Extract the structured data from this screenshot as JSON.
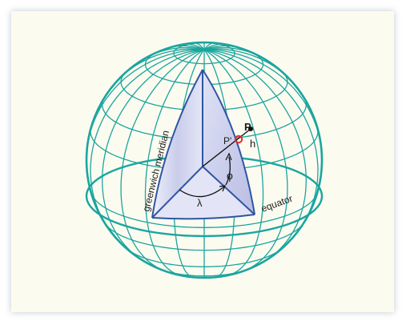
{
  "diagram": {
    "labels": {
      "point": "P",
      "projected_point": "P'",
      "height": "h",
      "latitude": "ϕ",
      "longitude": "λ",
      "equator": "equator",
      "greenwich_meridian": "greenwich meridian"
    },
    "colors": {
      "background": "#fcfbf0",
      "grid": "#1aa59e",
      "cutaway_edge": "#2f55a4",
      "cutaway_fill": "#d6d8f0",
      "projected_point": "#e0302c"
    }
  }
}
